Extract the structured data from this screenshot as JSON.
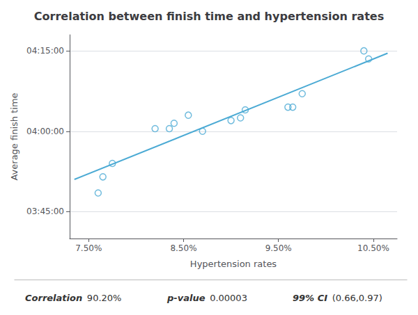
{
  "chart_data": {
    "type": "scatter",
    "title": "Correlation between finish time and hypertension rates",
    "xlabel": "Hypertension rates",
    "ylabel": "Average finish time",
    "xlim": [
      7.3,
      10.75
    ],
    "xticks": [
      {
        "value": 7.5,
        "label": "7.50%"
      },
      {
        "value": 8.5,
        "label": "8.50%"
      },
      {
        "value": 9.5,
        "label": "9.50%"
      },
      {
        "value": 10.5,
        "label": "10.50%"
      }
    ],
    "ylim": [
      220,
      258
    ],
    "yticks": [
      {
        "value": 225,
        "label": "03:45:00"
      },
      {
        "value": 240,
        "label": "04:00:00"
      },
      {
        "value": 255,
        "label": "04:15:00"
      }
    ],
    "grid": true,
    "series": [
      {
        "type": "scatter",
        "color": "#4baad4",
        "marker": "circle",
        "x": [
          7.6,
          7.65,
          7.75,
          8.2,
          8.35,
          8.4,
          8.55,
          8.7,
          9.0,
          9.1,
          9.15,
          9.6,
          9.65,
          9.75,
          10.4,
          10.45
        ],
        "values": [
          228.5,
          231.5,
          234.0,
          240.5,
          240.5,
          241.5,
          243.0,
          240.0,
          242.0,
          242.5,
          244.0,
          244.5,
          244.5,
          247.0,
          255.0,
          253.5
        ]
      },
      {
        "type": "line",
        "color": "#4baad4",
        "line_style": "solid",
        "x": [
          7.35,
          10.65
        ],
        "values": [
          231.02,
          254.56
        ]
      }
    ],
    "annotations": [
      "Correlation",
      "90.20%",
      "p-value",
      "0.00003",
      "99% CI",
      "(0.66,0.97)"
    ]
  }
}
